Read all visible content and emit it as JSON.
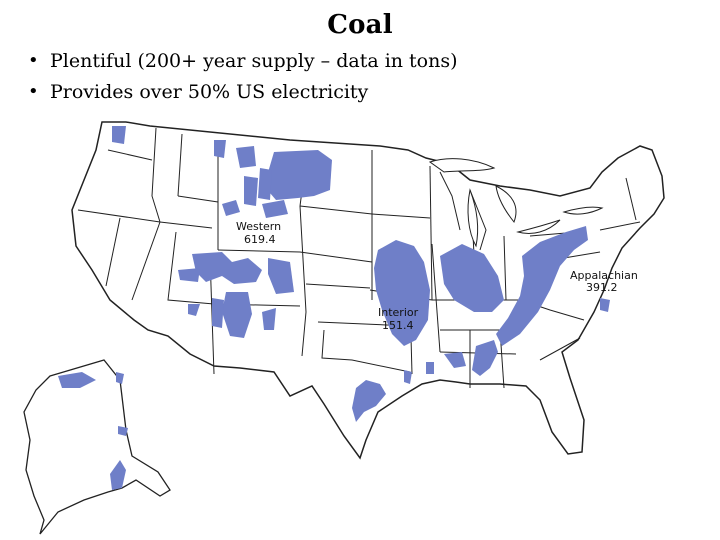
{
  "slide": {
    "title": "Coal",
    "bullets": [
      "Plentiful (200+ year supply – data in tons)",
      "Provides over 50% US electricity"
    ]
  },
  "map": {
    "coal_color": "#6f7fc8",
    "regions": [
      {
        "name": "Western",
        "value": "619.4"
      },
      {
        "name": "Interior",
        "value": "151.4"
      },
      {
        "name": "Appalachian",
        "value": "391.2"
      }
    ]
  }
}
